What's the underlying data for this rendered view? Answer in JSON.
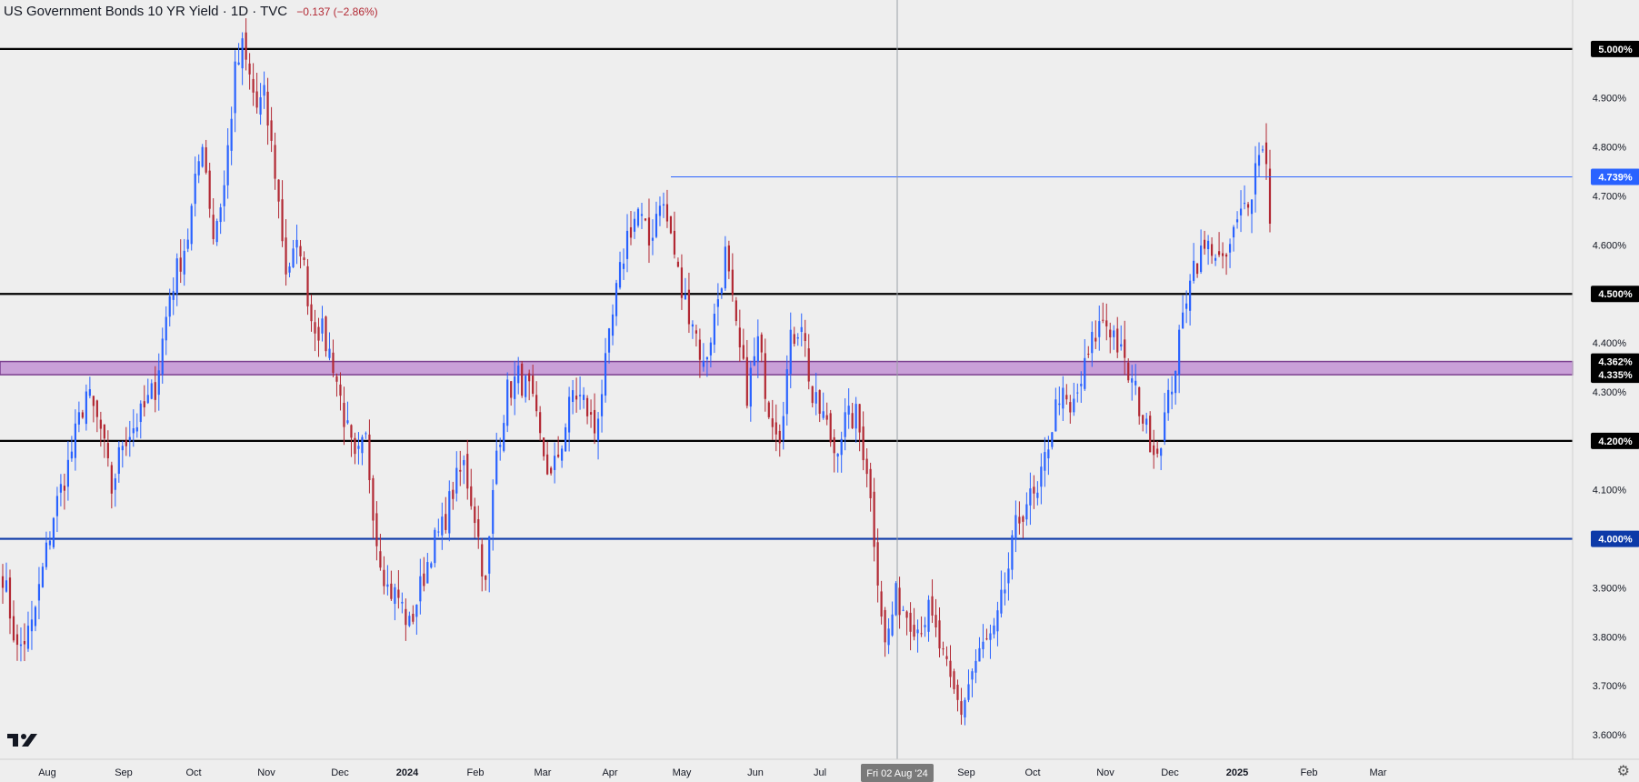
{
  "header": {
    "title": "US Government Bonds 10 YR Yield · 1D · TVC",
    "change": "−0.137 (−2.86%)"
  },
  "colors": {
    "background": "#eeeeee",
    "up": "#2962ff",
    "down": "#b22833",
    "zone_fill": "#c9a0d8",
    "zone_border": "#7b3f8f",
    "blue_level": "#0d3aa8",
    "black_level": "#000000",
    "marker_line": "#2962ff",
    "crosshair": "#9aa0a6"
  },
  "icons": {
    "logo": "tradingview-logo",
    "settings": "gear-icon"
  },
  "chart_data": {
    "type": "candlestick",
    "title": "US Government Bonds 10 YR Yield · 1D · TVC",
    "y_range": [
      3.55,
      5.1
    ],
    "y_ticks": [
      {
        "value": 3.6,
        "label": "3.600%"
      },
      {
        "value": 3.7,
        "label": "3.700%"
      },
      {
        "value": 3.8,
        "label": "3.800%"
      },
      {
        "value": 3.9,
        "label": "3.900%"
      },
      {
        "value": 4.0,
        "label": "4.000%"
      },
      {
        "value": 4.1,
        "label": "4.100%"
      },
      {
        "value": 4.2,
        "label": "4.200%"
      },
      {
        "value": 4.3,
        "label": "4.300%"
      },
      {
        "value": 4.4,
        "label": "4.400%"
      },
      {
        "value": 4.5,
        "label": "4.500%"
      },
      {
        "value": 4.6,
        "label": "4.600%"
      },
      {
        "value": 4.7,
        "label": "4.700%"
      },
      {
        "value": 4.8,
        "label": "4.800%"
      },
      {
        "value": 4.9,
        "label": "4.900%"
      },
      {
        "value": 5.0,
        "label": "5.000%"
      }
    ],
    "x_ticks": [
      {
        "label": "Aug",
        "bold": false
      },
      {
        "label": "Sep",
        "bold": false
      },
      {
        "label": "Oct",
        "bold": false
      },
      {
        "label": "Nov",
        "bold": false
      },
      {
        "label": "Dec",
        "bold": false
      },
      {
        "label": "2024",
        "bold": true
      },
      {
        "label": "Feb",
        "bold": false
      },
      {
        "label": "Mar",
        "bold": false
      },
      {
        "label": "Apr",
        "bold": false
      },
      {
        "label": "May",
        "bold": false
      },
      {
        "label": "Jun",
        "bold": false
      },
      {
        "label": "Jul",
        "bold": false
      },
      {
        "label": "Fri 02 Aug '24",
        "bold": false,
        "crosshair": true
      },
      {
        "label": "Sep",
        "bold": false
      },
      {
        "label": "Oct",
        "bold": false
      },
      {
        "label": "Nov",
        "bold": false
      },
      {
        "label": "Dec",
        "bold": false
      },
      {
        "label": "2025",
        "bold": true
      },
      {
        "label": "Feb",
        "bold": false
      },
      {
        "label": "Mar",
        "bold": false
      }
    ],
    "levels": [
      {
        "value": 5.0,
        "label": "5.000%",
        "color": "#000000"
      },
      {
        "value": 4.5,
        "label": "4.500%",
        "color": "#000000"
      },
      {
        "value": 4.2,
        "label": "4.200%",
        "color": "#000000"
      },
      {
        "value": 4.0,
        "label": "4.000%",
        "color": "#0d3aa8"
      }
    ],
    "zone": {
      "low": 4.335,
      "high": 4.362,
      "low_label": "4.335%",
      "high_label": "4.362%"
    },
    "marker": {
      "value": 4.739,
      "label": "4.739%"
    },
    "anchors": [
      [
        0,
        3.93
      ],
      [
        4,
        3.77
      ],
      [
        8,
        3.82
      ],
      [
        14,
        4.05
      ],
      [
        18,
        4.15
      ],
      [
        23,
        4.3
      ],
      [
        27,
        4.22
      ],
      [
        30,
        4.1
      ],
      [
        33,
        4.2
      ],
      [
        38,
        4.25
      ],
      [
        42,
        4.31
      ],
      [
        46,
        4.5
      ],
      [
        51,
        4.62
      ],
      [
        55,
        4.82
      ],
      [
        58,
        4.62
      ],
      [
        61,
        4.72
      ],
      [
        64,
        4.95
      ],
      [
        66,
        5.0
      ],
      [
        70,
        4.88
      ],
      [
        72,
        4.9
      ],
      [
        75,
        4.75
      ],
      [
        78,
        4.55
      ],
      [
        82,
        4.6
      ],
      [
        85,
        4.45
      ],
      [
        88,
        4.42
      ],
      [
        91,
        4.36
      ],
      [
        94,
        4.25
      ],
      [
        97,
        4.15
      ],
      [
        100,
        4.2
      ],
      [
        103,
        4.0
      ],
      [
        106,
        3.9
      ],
      [
        109,
        3.88
      ],
      [
        112,
        3.82
      ],
      [
        115,
        3.9
      ],
      [
        118,
        3.98
      ],
      [
        121,
        4.02
      ],
      [
        124,
        4.1
      ],
      [
        127,
        4.15
      ],
      [
        130,
        4.05
      ],
      [
        133,
        3.9
      ],
      [
        136,
        4.18
      ],
      [
        139,
        4.3
      ],
      [
        142,
        4.33
      ],
      [
        145,
        4.3
      ],
      [
        148,
        4.2
      ],
      [
        151,
        4.12
      ],
      [
        154,
        4.2
      ],
      [
        157,
        4.3
      ],
      [
        160,
        4.28
      ],
      [
        163,
        4.22
      ],
      [
        166,
        4.35
      ],
      [
        169,
        4.5
      ],
      [
        172,
        4.62
      ],
      [
        175,
        4.67
      ],
      [
        178,
        4.6
      ],
      [
        181,
        4.7
      ],
      [
        184,
        4.62
      ],
      [
        187,
        4.5
      ],
      [
        190,
        4.45
      ],
      [
        193,
        4.35
      ],
      [
        196,
        4.45
      ],
      [
        199,
        4.58
      ],
      [
        202,
        4.42
      ],
      [
        205,
        4.3
      ],
      [
        208,
        4.4
      ],
      [
        211,
        4.27
      ],
      [
        214,
        4.22
      ],
      [
        217,
        4.4
      ],
      [
        220,
        4.45
      ],
      [
        223,
        4.28
      ],
      [
        226,
        4.25
      ],
      [
        229,
        4.18
      ],
      [
        232,
        4.24
      ],
      [
        235,
        4.25
      ],
      [
        238,
        4.15
      ],
      [
        241,
        3.93
      ],
      [
        243,
        3.78
      ],
      [
        246,
        3.88
      ],
      [
        249,
        3.85
      ],
      [
        252,
        3.82
      ],
      [
        255,
        3.85
      ],
      [
        258,
        3.78
      ],
      [
        261,
        3.7
      ],
      [
        264,
        3.65
      ],
      [
        267,
        3.73
      ],
      [
        270,
        3.78
      ],
      [
        273,
        3.8
      ],
      [
        276,
        3.9
      ],
      [
        279,
        4.02
      ],
      [
        282,
        4.08
      ],
      [
        285,
        4.08
      ],
      [
        288,
        4.2
      ],
      [
        291,
        4.3
      ],
      [
        294,
        4.25
      ],
      [
        297,
        4.32
      ],
      [
        300,
        4.4
      ],
      [
        303,
        4.45
      ],
      [
        306,
        4.42
      ],
      [
        309,
        4.35
      ],
      [
        312,
        4.3
      ],
      [
        315,
        4.22
      ],
      [
        318,
        4.18
      ],
      [
        321,
        4.28
      ],
      [
        324,
        4.4
      ],
      [
        327,
        4.55
      ],
      [
        330,
        4.58
      ],
      [
        333,
        4.6
      ],
      [
        336,
        4.55
      ],
      [
        339,
        4.62
      ],
      [
        342,
        4.68
      ],
      [
        344,
        4.72
      ],
      [
        346,
        4.8
      ],
      [
        348,
        4.78
      ],
      [
        349,
        4.66
      ]
    ]
  }
}
